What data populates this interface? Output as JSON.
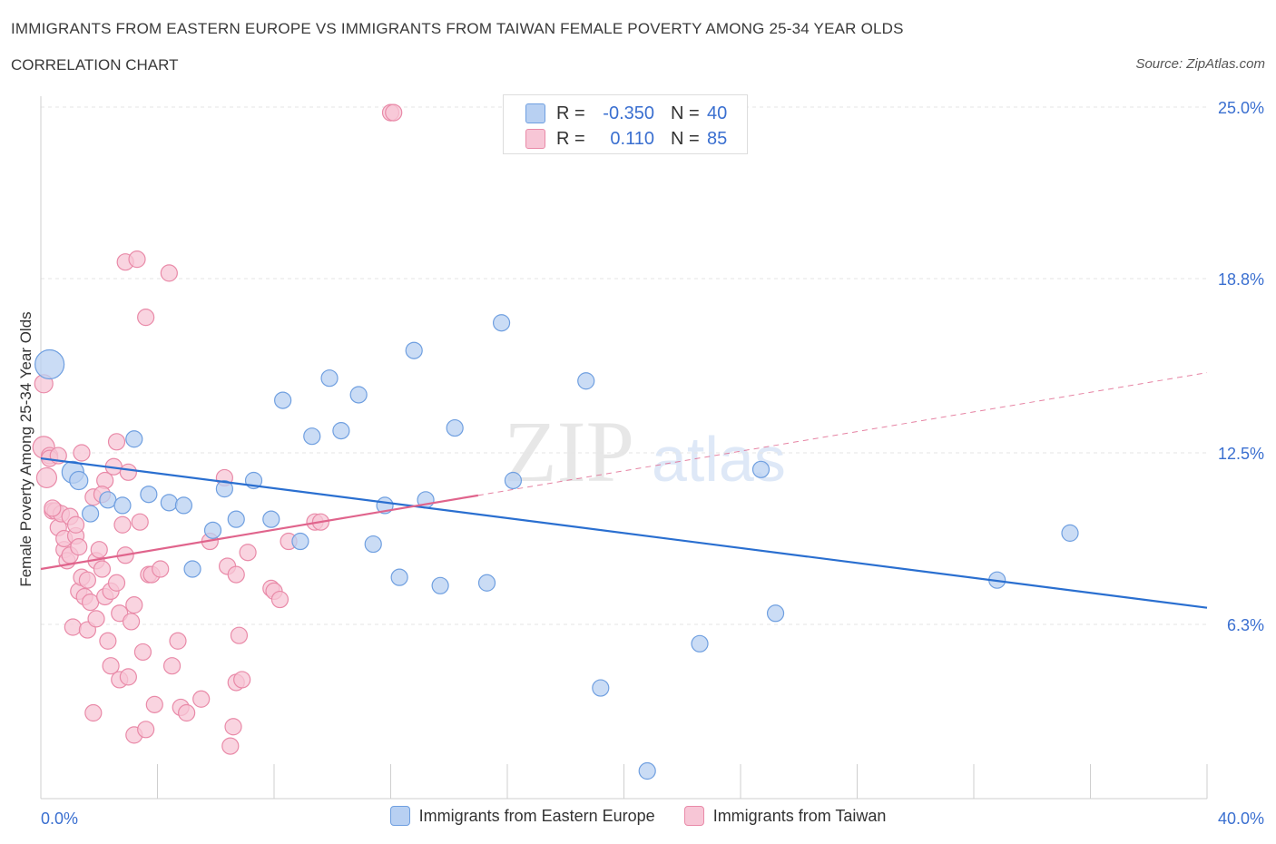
{
  "title": "IMMIGRANTS FROM EASTERN EUROPE VS IMMIGRANTS FROM TAIWAN FEMALE POVERTY AMONG 25-34 YEAR OLDS",
  "subtitle": "CORRELATION CHART",
  "source": "Source: ZipAtlas.com",
  "watermark": {
    "zip": "ZIP",
    "atlas": "atlas"
  },
  "colors": {
    "blue_fill": "#b8d0f2",
    "blue_stroke": "#6f9fe0",
    "blue_line": "#2a6fd0",
    "pink_fill": "#f7c6d6",
    "pink_stroke": "#e98aa8",
    "pink_line": "#e0648c",
    "grid": "#e6e6e6",
    "axis_text": "#3a6fd0"
  },
  "stats": [
    {
      "series": "Immigrants from Eastern Europe",
      "r_label": "R =",
      "r": "-0.350",
      "n_label": "N =",
      "n": "40",
      "color": "#b8d0f2"
    },
    {
      "series": "Immigrants from Taiwan",
      "r_label": "R =",
      "r": "0.110",
      "n_label": "N =",
      "n": "85",
      "color": "#f7c6d6"
    }
  ],
  "chart_data": {
    "type": "scatter",
    "xlabel": "",
    "ylabel": "Female Poverty Among 25-34 Year Olds",
    "xlim": [
      0,
      40
    ],
    "ylim": [
      0,
      25
    ],
    "x_tick_labels": [
      "0.0%",
      "40.0%"
    ],
    "y_ticks": [
      6.3,
      12.5,
      18.8,
      25.0
    ],
    "y_tick_labels": [
      "6.3%",
      "12.5%",
      "18.8%",
      "25.0%"
    ],
    "legend_position": "bottom",
    "series": [
      {
        "name": "Immigrants from Eastern Europe",
        "color": "#b8d0f2",
        "points": [
          [
            0.3,
            15.7,
            16
          ],
          [
            1.1,
            11.8,
            12
          ],
          [
            1.3,
            11.5,
            10
          ],
          [
            1.7,
            10.3,
            9
          ],
          [
            2.3,
            10.8,
            9
          ],
          [
            2.8,
            10.6,
            9
          ],
          [
            3.2,
            13.0,
            9
          ],
          [
            3.7,
            11.0,
            9
          ],
          [
            4.4,
            10.7,
            9
          ],
          [
            4.9,
            10.6,
            9
          ],
          [
            5.2,
            8.3,
            9
          ],
          [
            5.9,
            9.7,
            9
          ],
          [
            6.3,
            11.2,
            9
          ],
          [
            6.7,
            10.1,
            9
          ],
          [
            7.3,
            11.5,
            9
          ],
          [
            7.9,
            10.1,
            9
          ],
          [
            8.3,
            14.4,
            9
          ],
          [
            8.9,
            9.3,
            9
          ],
          [
            9.3,
            13.1,
            9
          ],
          [
            9.9,
            15.2,
            9
          ],
          [
            10.3,
            13.3,
            9
          ],
          [
            10.9,
            14.6,
            9
          ],
          [
            11.4,
            9.2,
            9
          ],
          [
            11.8,
            10.6,
            9
          ],
          [
            12.3,
            8.0,
            9
          ],
          [
            12.8,
            16.2,
            9
          ],
          [
            13.2,
            10.8,
            9
          ],
          [
            13.7,
            7.7,
            9
          ],
          [
            14.2,
            13.4,
            9
          ],
          [
            15.3,
            7.8,
            9
          ],
          [
            15.8,
            17.2,
            9
          ],
          [
            16.2,
            11.5,
            9
          ],
          [
            18.7,
            15.1,
            9
          ],
          [
            19.2,
            4.0,
            9
          ],
          [
            20.8,
            1.0,
            9
          ],
          [
            22.6,
            5.6,
            9
          ],
          [
            24.7,
            11.9,
            9
          ],
          [
            25.2,
            6.7,
            9
          ],
          [
            32.8,
            7.9,
            9
          ],
          [
            35.3,
            9.6,
            9
          ]
        ]
      },
      {
        "name": "Immigrants from Taiwan",
        "color": "#f7c6d6",
        "points": [
          [
            0.1,
            15.0,
            10
          ],
          [
            0.1,
            12.7,
            12
          ],
          [
            0.2,
            11.6,
            11
          ],
          [
            0.3,
            12.4,
            9
          ],
          [
            0.4,
            10.4,
            9
          ],
          [
            0.5,
            10.4,
            9
          ],
          [
            0.6,
            9.8,
            9
          ],
          [
            0.7,
            10.3,
            9
          ],
          [
            0.8,
            9.0,
            9
          ],
          [
            0.8,
            9.4,
            9
          ],
          [
            0.9,
            8.6,
            9
          ],
          [
            1.0,
            10.2,
            9
          ],
          [
            1.0,
            8.8,
            9
          ],
          [
            1.1,
            6.2,
            9
          ],
          [
            1.2,
            9.5,
            9
          ],
          [
            1.3,
            9.1,
            9
          ],
          [
            1.3,
            7.5,
            9
          ],
          [
            1.4,
            8.0,
            9
          ],
          [
            1.4,
            12.5,
            9
          ],
          [
            1.5,
            7.3,
            9
          ],
          [
            1.6,
            6.1,
            9
          ],
          [
            1.6,
            7.9,
            9
          ],
          [
            1.7,
            7.1,
            9
          ],
          [
            1.8,
            3.1,
            9
          ],
          [
            1.8,
            10.9,
            9
          ],
          [
            1.9,
            8.6,
            9
          ],
          [
            1.9,
            6.5,
            9
          ],
          [
            2.0,
            9.0,
            9
          ],
          [
            2.1,
            8.3,
            9
          ],
          [
            2.2,
            7.3,
            9
          ],
          [
            2.2,
            11.5,
            9
          ],
          [
            2.3,
            5.7,
            9
          ],
          [
            2.4,
            7.5,
            9
          ],
          [
            2.4,
            4.8,
            9
          ],
          [
            2.5,
            12.0,
            9
          ],
          [
            2.6,
            7.8,
            9
          ],
          [
            2.6,
            12.9,
            9
          ],
          [
            2.7,
            6.7,
            9
          ],
          [
            2.7,
            4.3,
            9
          ],
          [
            2.8,
            9.9,
            9
          ],
          [
            2.9,
            8.8,
            9
          ],
          [
            2.9,
            19.4,
            9
          ],
          [
            3.0,
            11.8,
            9
          ],
          [
            3.0,
            4.4,
            9
          ],
          [
            3.1,
            6.4,
            9
          ],
          [
            3.2,
            7.0,
            9
          ],
          [
            3.2,
            2.3,
            9
          ],
          [
            3.3,
            19.5,
            9
          ],
          [
            3.4,
            10.0,
            9
          ],
          [
            3.5,
            5.3,
            9
          ],
          [
            3.6,
            17.4,
            9
          ],
          [
            3.6,
            2.5,
            9
          ],
          [
            3.7,
            8.1,
            9
          ],
          [
            3.8,
            8.1,
            9
          ],
          [
            3.9,
            3.4,
            9
          ],
          [
            4.1,
            8.3,
            9
          ],
          [
            4.4,
            19.0,
            9
          ],
          [
            4.5,
            4.8,
            9
          ],
          [
            4.7,
            5.7,
            9
          ],
          [
            4.8,
            3.3,
            9
          ],
          [
            5.0,
            3.1,
            9
          ],
          [
            5.5,
            3.6,
            9
          ],
          [
            5.8,
            9.3,
            9
          ],
          [
            6.3,
            11.6,
            9
          ],
          [
            6.4,
            8.4,
            9
          ],
          [
            6.5,
            1.9,
            9
          ],
          [
            6.6,
            2.6,
            9
          ],
          [
            6.7,
            8.1,
            9
          ],
          [
            6.7,
            4.2,
            9
          ],
          [
            6.8,
            5.9,
            9
          ],
          [
            6.9,
            4.3,
            9
          ],
          [
            7.1,
            8.9,
            9
          ],
          [
            7.9,
            7.6,
            9
          ],
          [
            8.0,
            7.5,
            9
          ],
          [
            8.2,
            7.2,
            9
          ],
          [
            8.5,
            9.3,
            9
          ],
          [
            9.4,
            10.0,
            9
          ],
          [
            9.6,
            10.0,
            9
          ],
          [
            12.0,
            24.8,
            9
          ],
          [
            12.1,
            24.8,
            9
          ],
          [
            0.3,
            12.3,
            9
          ],
          [
            0.6,
            12.4,
            9
          ],
          [
            1.2,
            9.9,
            9
          ],
          [
            2.1,
            11.0,
            9
          ],
          [
            0.4,
            10.5,
            9
          ]
        ]
      }
    ],
    "trend_lines": [
      {
        "series": "Immigrants from Eastern Europe",
        "color": "#2a6fd0",
        "x0": 0,
        "y0": 12.3,
        "x1": 40,
        "y1": 6.9,
        "dashed_from": null
      },
      {
        "series": "Immigrants from Taiwan",
        "color": "#e0648c",
        "x0": 0,
        "y0": 8.3,
        "x1": 40,
        "y1": 15.4,
        "solid_until": 15.0
      }
    ]
  },
  "legend": [
    {
      "label": "Immigrants from Eastern Europe",
      "color": "#b8d0f2",
      "stroke": "#6f9fe0"
    },
    {
      "label": "Immigrants from Taiwan",
      "color": "#f7c6d6",
      "stroke": "#e98aa8"
    }
  ]
}
